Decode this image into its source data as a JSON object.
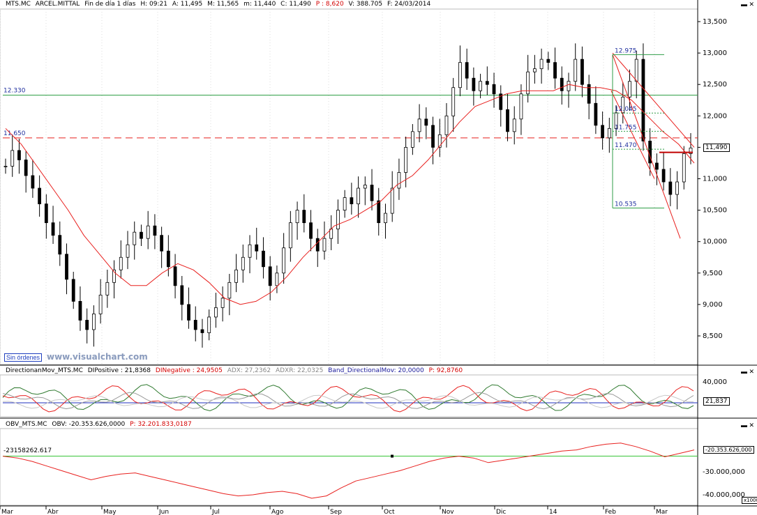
{
  "header": {
    "symbol": "MTS.MC",
    "name": "ARCEL.MITTAL",
    "period": "Fin de día 1 días",
    "h": "H: 09:21",
    "a": "A: 11,495",
    "m": "M: 11,565",
    "mm": "m: 11,440",
    "c": "C: 11,490",
    "p": "P : 8,620",
    "v": "V: 388.705",
    "f": "F: 24/03/2014"
  },
  "dmi_header": {
    "name": "DirectionanMov_MTS.MC",
    "dip": "DIPositive : 21,8368",
    "din": "DINegative : 24,9505",
    "adx": "ADX: 27,2362",
    "adxr": "ADXR: 22,0325",
    "band": "Band_DirectionalMov: 20,0000",
    "p": "P: 92,8760"
  },
  "obv_header": {
    "name": "OBV_MTS.MC",
    "obv": "OBV: -20.353.626,0000",
    "p": "P: 32.201.833,0187"
  },
  "badges": {
    "price": "11,490",
    "dmi": "21,837",
    "obv": "-20.353.626,000",
    "obv_left": "-23158262.617",
    "x1000": "x1000"
  },
  "status": {
    "orders": "Sin órdenes",
    "watermark": "www.visualchart.com"
  },
  "colors": {
    "up": "#000000",
    "ma": "#e8201e",
    "hline": "#2f9e47",
    "support": "#e8201e",
    "fib": "#2f9e47",
    "fibtext": "#1f2f9e",
    "dip": "#2f7a2f",
    "din": "#e8201e",
    "adx": "#9a9a9a",
    "band": "#1f2fbf",
    "obv": "#e8201e",
    "obvline": "#37c437"
  },
  "chart_data": [
    {
      "type": "candlestick",
      "title": "MTS.MC ARCEL.MITTAL",
      "xlabel": "",
      "ylabel": "",
      "x_ticks": [
        "Mar",
        "Abr",
        "May",
        "Jun",
        "Jul",
        "Ago",
        "Sep",
        "Oct",
        "Nov",
        "Dic",
        "14",
        "Feb",
        "Mar"
      ],
      "y_ticks": [
        "13,500",
        "13,000",
        "12,500",
        "12,000",
        "11,500",
        "11,000",
        "10,500",
        "10,000",
        "9,500",
        "9,000",
        "8,500"
      ],
      "ylim": [
        8200,
        13700
      ],
      "series": [
        {
          "name": "Close",
          "values": [
            11.2,
            11.45,
            11.3,
            11.05,
            10.85,
            10.6,
            10.3,
            10.1,
            9.8,
            9.4,
            9.05,
            8.75,
            8.6,
            8.85,
            9.15,
            9.35,
            9.55,
            9.75,
            9.95,
            10.15,
            10.05,
            10.25,
            10.1,
            9.85,
            9.6,
            9.3,
            9.0,
            8.75,
            8.6,
            8.55,
            8.8,
            8.95,
            9.1,
            9.35,
            9.55,
            9.75,
            9.95,
            9.85,
            9.6,
            9.3,
            9.5,
            9.9,
            10.3,
            10.5,
            10.3,
            10.05,
            9.85,
            10.05,
            10.2,
            10.5,
            10.7,
            10.6,
            10.85,
            10.9,
            10.65,
            10.3,
            10.45,
            10.85,
            11.1,
            11.5,
            11.75,
            11.95,
            11.85,
            11.5,
            11.7,
            12.0,
            12.45,
            12.85,
            12.6,
            12.4,
            12.55,
            12.5,
            12.35,
            12.1,
            11.75,
            11.95,
            12.35,
            12.7,
            12.75,
            12.9,
            12.85,
            12.6,
            12.4,
            12.55,
            12.9,
            12.5,
            12.2,
            11.85,
            11.65,
            11.8,
            12.05,
            12.3,
            12.55,
            12.9,
            11.6,
            11.25,
            11.15,
            10.95,
            10.75,
            10.95,
            11.4,
            11.49
          ]
        },
        {
          "name": "MA",
          "values": [
            11.8,
            11.55,
            11.2,
            10.85,
            10.5,
            10.1,
            9.8,
            9.5,
            9.3,
            9.3,
            9.5,
            9.65,
            9.55,
            9.35,
            9.1,
            9.0,
            9.05,
            9.2,
            9.45,
            9.75,
            10.0,
            10.25,
            10.35,
            10.5,
            10.65,
            10.9,
            11.05,
            11.3,
            11.6,
            11.9,
            12.15,
            12.25,
            12.35,
            12.4,
            12.4,
            12.4,
            12.5,
            12.45,
            12.45,
            12.4,
            12.25,
            12.0,
            11.75,
            11.55,
            11.25
          ]
        }
      ],
      "annotations": {
        "hlines": [
          {
            "label": "12.330",
            "value": 12330
          },
          {
            "label": "11.650",
            "value": 11650,
            "dashed": true
          }
        ],
        "fib_levels": [
          "12.975",
          "12.045",
          "11.755",
          "11.470",
          "10.535"
        ]
      }
    },
    {
      "type": "line",
      "title": "DirectionanMov_MTS.MC",
      "y_ticks": [
        "40,000"
      ],
      "series": [
        {
          "name": "DIPositive",
          "last": 21.8368
        },
        {
          "name": "DINegative",
          "last": 24.9505
        },
        {
          "name": "ADX",
          "last": 27.2362
        },
        {
          "name": "ADXR",
          "last": 22.0325
        },
        {
          "name": "Band_DirectionalMov",
          "last": 20.0
        }
      ]
    },
    {
      "type": "line",
      "title": "OBV_MTS.MC",
      "y_ticks": [
        "-30.000,000",
        "-40.000,000"
      ],
      "series": [
        {
          "name": "OBV",
          "values": [
            -23.2,
            -24,
            -25.5,
            -27.5,
            -29.5,
            -31.5,
            -33.5,
            -32,
            -31,
            -30.5,
            -32,
            -33.5,
            -35,
            -36.5,
            -38,
            -39.5,
            -40.5,
            -40,
            -39,
            -38.5,
            -39.5,
            -41.5,
            -40.5,
            -37,
            -34,
            -32.5,
            -31,
            -29.5,
            -27.5,
            -25.5,
            -24,
            -23.2,
            -24,
            -26,
            -25,
            -24,
            -23,
            -22,
            -21,
            -20.5,
            -19,
            -18,
            -17.5,
            -19,
            -21,
            -23.5,
            -22,
            -20.5
          ]
        }
      ]
    }
  ]
}
